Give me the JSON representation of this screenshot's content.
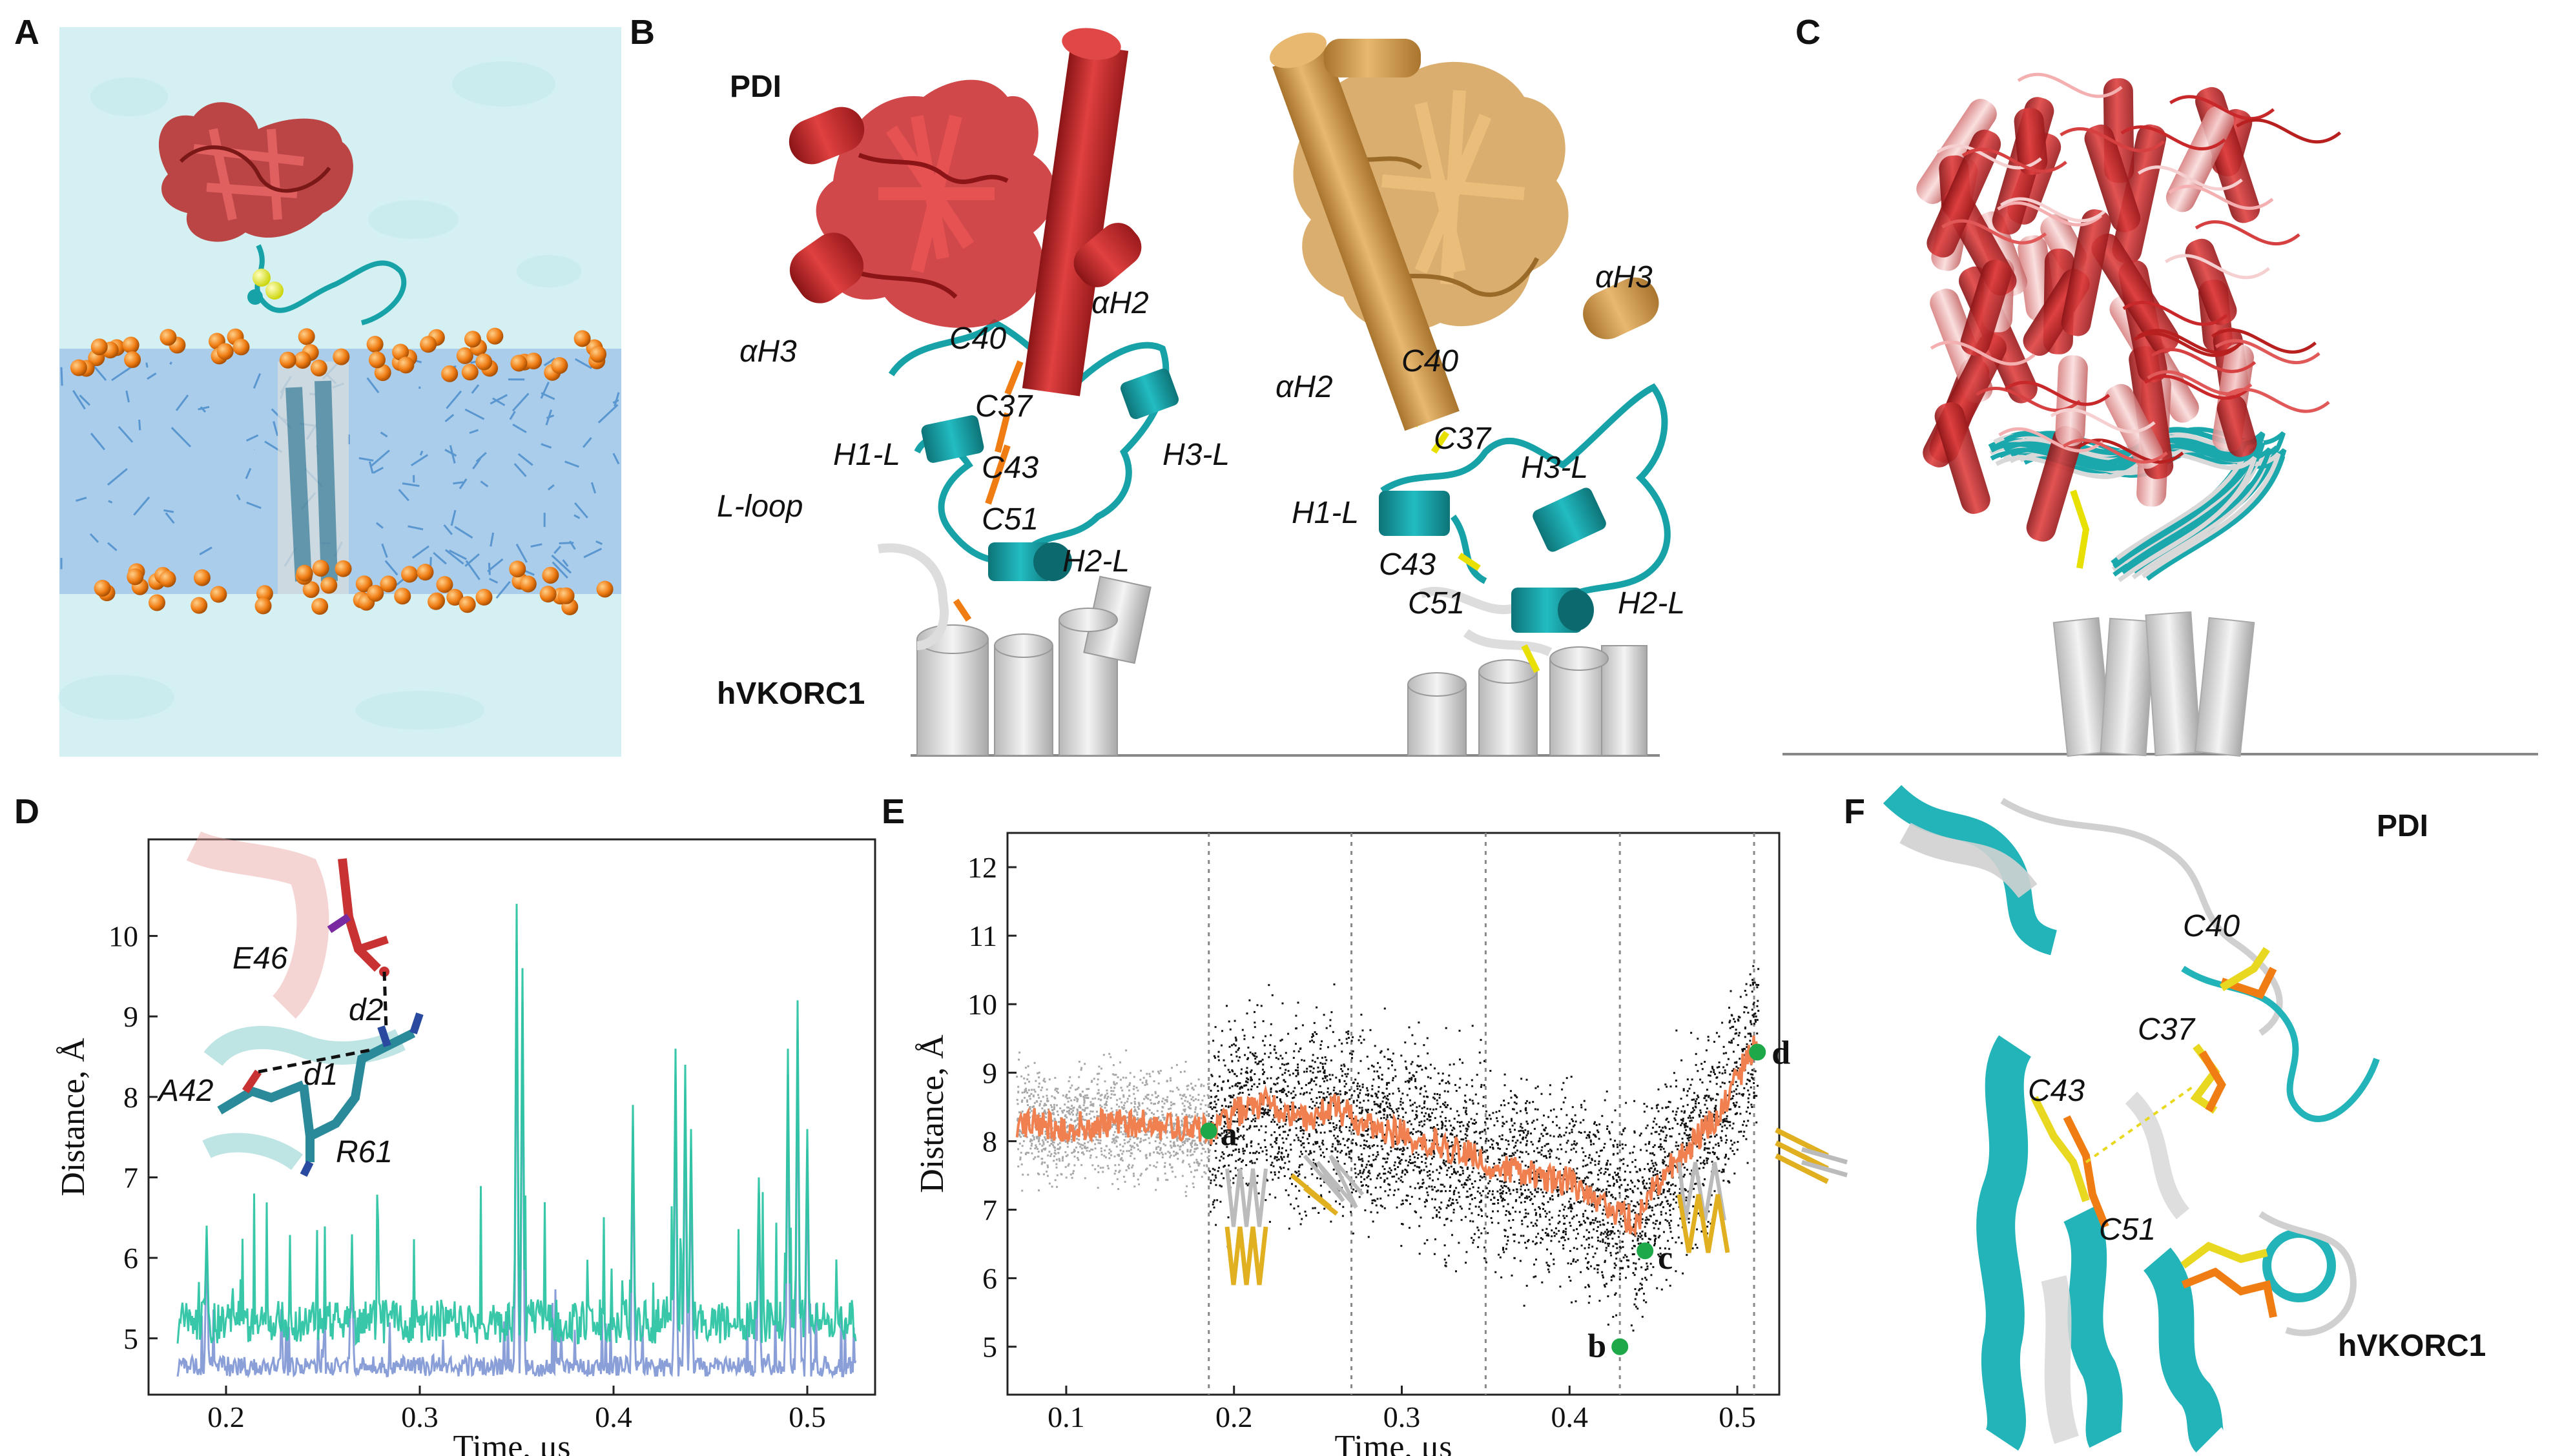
{
  "panels": {
    "A": {
      "label": "A"
    },
    "B": {
      "label": "B",
      "pdi": "PDI",
      "hvkorc": "hVKORC1",
      "left": {
        "ah3": "αH3",
        "ah2": "αH2",
        "c40": "C40",
        "c37": "C37",
        "c43": "C43",
        "c51": "C51",
        "h1l": "H1-L",
        "h2l": "H2-L",
        "h3l": "H3-L",
        "lloop": "L-loop"
      },
      "right": {
        "ah2": "αH2",
        "ah3": "αH3",
        "c40": "C40",
        "c37": "C37",
        "c43": "C43",
        "c51": "C51",
        "h1l": "H1-L",
        "h2l": "H2-L",
        "h3l": "H3-L"
      }
    },
    "C": {
      "label": "C"
    },
    "D": {
      "label": "D",
      "inset": {
        "e46": "E46",
        "a42": "A42",
        "r61": "R61",
        "d1": "d1",
        "d2": "d2"
      }
    },
    "E": {
      "label": "E",
      "points": {
        "a": "a",
        "b": "b",
        "c": "c",
        "d": "d"
      }
    },
    "F": {
      "label": "F",
      "pdi": "PDI",
      "hvkorc": "hVKORC1",
      "c40": "C40",
      "c37": "C37",
      "c43": "C43",
      "c51": "C51"
    }
  },
  "colors": {
    "pdi_red": "#c8282a",
    "pdi_tan": "#d4a055",
    "vkor_cyan": "#17a2a8",
    "lipid_orange": "#f07d14",
    "water": "#cfeef0",
    "lipid_blue": "#4e8fcc",
    "trace_green": "#2dc4a3",
    "trace_blue": "#8a9fd8",
    "trace_orange": "#f08050",
    "scatter_black": "#111111",
    "scatter_gray": "#a8a8a8"
  },
  "chart_data": [
    {
      "type": "line",
      "panel": "D",
      "xlabel": "Time, μs",
      "ylabel": "Distance, Å",
      "xlim": [
        0.16,
        0.535
      ],
      "ylim": [
        4.3,
        11.2
      ],
      "xticks": [
        "0.2",
        "0.3",
        "0.4",
        "0.5"
      ],
      "yticks": [
        "5",
        "6",
        "7",
        "8",
        "9",
        "10"
      ],
      "series": [
        {
          "name": "d1",
          "color": "#8a9fd8",
          "baseline": 4.6
        },
        {
          "name": "d2",
          "color": "#2dc4a3",
          "baseline": 5.1
        }
      ],
      "spikes": [
        [
          0.19,
          6.4
        ],
        [
          0.265,
          6.0
        ],
        [
          0.35,
          10.4
        ],
        [
          0.353,
          9.6
        ],
        [
          0.41,
          7.9
        ],
        [
          0.432,
          8.6
        ],
        [
          0.437,
          8.4
        ],
        [
          0.44,
          7.6
        ],
        [
          0.475,
          7.0
        ],
        [
          0.49,
          8.6
        ],
        [
          0.495,
          9.2
        ],
        [
          0.5,
          7.6
        ]
      ]
    },
    {
      "type": "scatter",
      "panel": "E",
      "xlabel": "Time, μs",
      "ylabel": "Distance, Å",
      "xlim": [
        0.065,
        0.525
      ],
      "ylim": [
        4.3,
        12.5
      ],
      "xticks": [
        "0.1",
        "0.2",
        "0.3",
        "0.4",
        "0.5"
      ],
      "yticks": [
        "5",
        "6",
        "7",
        "8",
        "9",
        "10",
        "11",
        "12"
      ],
      "window_boundaries": [
        0.185,
        0.27,
        0.35,
        0.43,
        0.51
      ],
      "running_average": [
        [
          0.07,
          8.3
        ],
        [
          0.1,
          8.2
        ],
        [
          0.13,
          8.3
        ],
        [
          0.16,
          8.2
        ],
        [
          0.185,
          8.15
        ],
        [
          0.2,
          8.4
        ],
        [
          0.22,
          8.6
        ],
        [
          0.24,
          8.3
        ],
        [
          0.26,
          8.5
        ],
        [
          0.28,
          8.2
        ],
        [
          0.3,
          8.1
        ],
        [
          0.32,
          8.0
        ],
        [
          0.34,
          7.8
        ],
        [
          0.36,
          7.6
        ],
        [
          0.38,
          7.5
        ],
        [
          0.4,
          7.4
        ],
        [
          0.42,
          7.1
        ],
        [
          0.44,
          6.8
        ],
        [
          0.45,
          7.3
        ],
        [
          0.47,
          7.9
        ],
        [
          0.49,
          8.4
        ],
        [
          0.5,
          8.9
        ],
        [
          0.51,
          9.4
        ]
      ],
      "marked_points": [
        {
          "label": "a",
          "x": 0.185,
          "y": 8.15
        },
        {
          "label": "b",
          "x": 0.43,
          "y": 5.0
        },
        {
          "label": "c",
          "x": 0.445,
          "y": 6.4
        },
        {
          "label": "d",
          "x": 0.512,
          "y": 9.3
        }
      ]
    }
  ]
}
